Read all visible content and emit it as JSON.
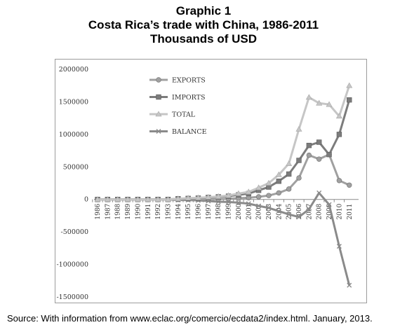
{
  "title": {
    "line1": "Graphic 1",
    "line2": "Costa Rica’s trade with China, 1986-2011",
    "line3": "Thousands of USD"
  },
  "source": "Source: With information from www.eclac.org/comercio/ecdata2/index.html. January, 2013.",
  "chart_data": {
    "type": "line",
    "title": "",
    "xlabel": "",
    "ylabel": "",
    "categories": [
      "1986",
      "1987",
      "1988",
      "1989",
      "1990",
      "1991",
      "1992",
      "1993",
      "1994",
      "1995",
      "1996",
      "1997",
      "1998",
      "1999",
      "2000",
      "2001",
      "2002",
      "2003",
      "2004",
      "2005",
      "2006",
      "2007",
      "2008",
      "2009",
      "2010",
      "2011"
    ],
    "yticks": [
      2000000,
      1500000,
      1000000,
      500000,
      0,
      -500000,
      -1000000,
      -1500000
    ],
    "ylim": [
      -1500000,
      2000000
    ],
    "grid": false,
    "legend_placement": "top-left",
    "series": [
      {
        "name": "EXPORTS",
        "color": "#a0a0a0",
        "marker": "circle",
        "values": [
          0,
          0,
          0,
          0,
          0,
          0,
          0,
          0,
          0,
          5000,
          5000,
          5000,
          5000,
          10000,
          20000,
          25000,
          40000,
          60000,
          100000,
          160000,
          330000,
          680000,
          620000,
          690000,
          290000,
          220000
        ]
      },
      {
        "name": "IMPORTS",
        "color": "#7c7c7c",
        "marker": "square",
        "values": [
          0,
          0,
          0,
          0,
          0,
          0,
          0,
          0,
          10000,
          15000,
          20000,
          30000,
          40000,
          50000,
          70000,
          90000,
          140000,
          190000,
          280000,
          390000,
          600000,
          830000,
          880000,
          690000,
          1000000,
          1530000
        ]
      },
      {
        "name": "TOTAL",
        "color": "#c6c6c6",
        "marker": "triangle",
        "values": [
          0,
          0,
          0,
          0,
          0,
          0,
          0,
          0,
          10000,
          20000,
          25000,
          35000,
          45000,
          60000,
          90000,
          115000,
          180000,
          250000,
          380000,
          550000,
          1080000,
          1570000,
          1480000,
          1460000,
          1280000,
          1750000
        ]
      },
      {
        "name": "BALANCE",
        "color": "#8a8a8a",
        "marker": "x",
        "values": [
          0,
          0,
          0,
          0,
          0,
          0,
          0,
          0,
          -10000,
          -10000,
          -15000,
          -25000,
          -35000,
          -40000,
          -50000,
          -65000,
          -100000,
          -130000,
          -180000,
          -230000,
          -270000,
          -150000,
          100000,
          -80000,
          -720000,
          -1320000
        ]
      }
    ]
  }
}
